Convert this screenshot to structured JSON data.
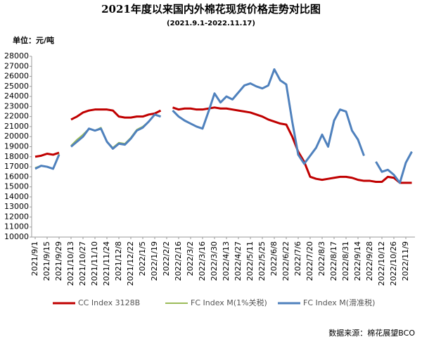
{
  "chart_data": {
    "type": "line",
    "title": "2021年度以来国内外棉花现货价格走势对比图",
    "subtitle": "(2021.9.1-2022.11.17)",
    "y_unit": "单位：元/吨",
    "source": "数据来源：棉花展望BCO",
    "x": [
      "2021/9/1",
      null,
      "2021/9/15",
      null,
      "2021/9/29",
      null,
      "2021/10/13",
      null,
      "2021/10/27",
      null,
      "2021/11/10",
      null,
      "2021/11/24",
      null,
      "2021/12/8",
      null,
      "2021/12/22",
      null,
      "2022/1/5",
      null,
      "2022/1/19",
      null,
      "2022/2/2",
      null,
      "2022/2/16",
      null,
      "2022/3/2",
      null,
      "2022/3/16",
      null,
      "2022/3/30",
      null,
      "2022/4/13",
      null,
      "2022/4/27",
      null,
      "2022/5/11",
      null,
      "2022/5/25",
      null,
      "2022/6/8",
      null,
      "2022/6/22",
      null,
      "2022/7/6",
      null,
      "2022/7/20",
      null,
      "2022/8/3",
      null,
      "2022/8/17",
      null,
      "2022/8/31",
      null,
      "2022/9/14",
      null,
      "2022/9/28",
      null,
      "2022/10/12",
      null,
      "2022/10/26",
      null,
      "2022/11/9",
      null
    ],
    "series": [
      {
        "name": "CC Index 3128B",
        "color": "#c00000",
        "width": 3,
        "values": [
          18000,
          18100,
          18300,
          18200,
          18400,
          null,
          21700,
          22000,
          22400,
          22600,
          22700,
          22700,
          22700,
          22600,
          22000,
          21900,
          21900,
          22000,
          22000,
          22200,
          22300,
          22600,
          null,
          22900,
          22700,
          22800,
          22800,
          22700,
          22700,
          22800,
          22900,
          22800,
          22800,
          22700,
          22600,
          22500,
          22400,
          22200,
          22000,
          21700,
          21500,
          21300,
          21200,
          20000,
          18500,
          17500,
          16000,
          15800,
          15700,
          15800,
          15900,
          16000,
          16000,
          15900,
          15700,
          15600,
          15600,
          15500,
          15500,
          16000,
          15900,
          15400,
          15400,
          15400
        ]
      },
      {
        "name": "FC Index M(1%关税)",
        "color": "#9bbb59",
        "width": 2,
        "values": [
          16900,
          17100,
          17000,
          16800,
          18300,
          null,
          19100,
          19700,
          20200,
          20800,
          20600,
          20900,
          19500,
          18900,
          19400,
          19300,
          19900,
          20700,
          21000,
          21500,
          22200,
          22000,
          null,
          22600,
          22000,
          21600,
          21300,
          21000,
          20800,
          22500,
          24300,
          23400,
          24000,
          23700,
          24400,
          25100,
          25300,
          25000,
          24800,
          25100,
          26700,
          25600,
          25200,
          21500,
          18200,
          17300,
          18100,
          18900,
          20200,
          19000,
          21600,
          22700,
          22500,
          20600,
          19700,
          18100,
          null,
          17500,
          16500,
          16700,
          16200,
          15400,
          17400,
          18500
        ]
      },
      {
        "name": "FC Index M(滑准税)",
        "color": "#4f81bd",
        "width": 3,
        "values": [
          16800,
          17100,
          17000,
          16800,
          18200,
          null,
          19000,
          19500,
          20000,
          20800,
          20600,
          20800,
          19500,
          18800,
          19300,
          19200,
          19800,
          20600,
          20900,
          21500,
          22200,
          22000,
          null,
          22600,
          22000,
          21600,
          21300,
          21000,
          20800,
          22500,
          24300,
          23400,
          24000,
          23700,
          24400,
          25100,
          25300,
          25000,
          24800,
          25100,
          26700,
          25600,
          25200,
          21500,
          18200,
          17300,
          18100,
          18900,
          20200,
          19000,
          21600,
          22700,
          22500,
          20600,
          19700,
          18100,
          null,
          17500,
          16500,
          16700,
          16200,
          15400,
          17400,
          18500
        ]
      }
    ],
    "ylim": [
      10000,
      28000
    ],
    "yticks": [
      10000,
      11000,
      12000,
      13000,
      14000,
      15000,
      16000,
      17000,
      18000,
      19000,
      20000,
      21000,
      22000,
      23000,
      24000,
      25000,
      26000,
      27000,
      28000
    ],
    "grid": false
  }
}
